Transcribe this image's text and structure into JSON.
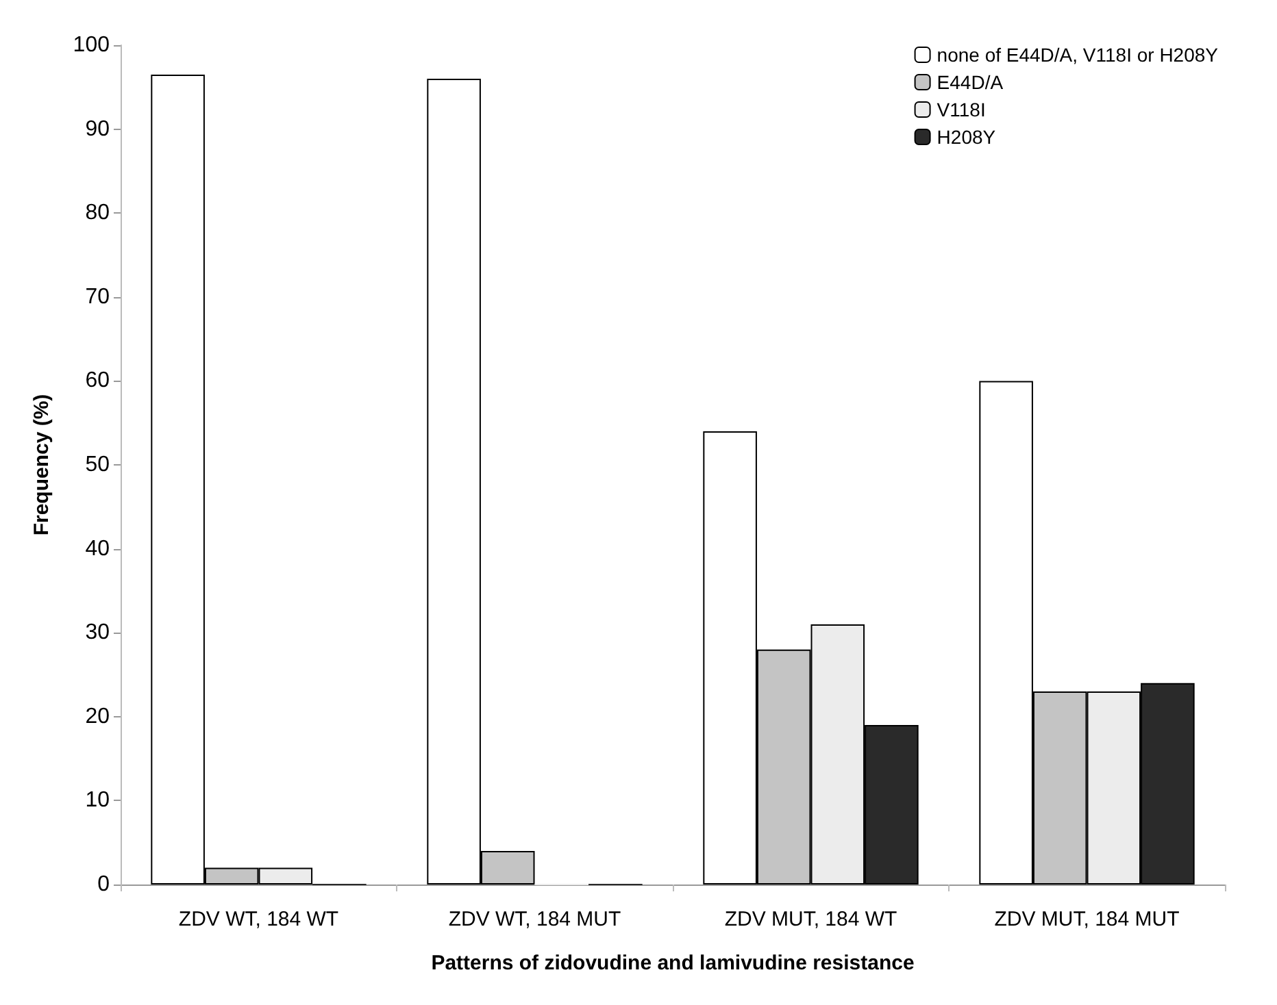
{
  "chart_data": {
    "type": "bar",
    "xlabel": "Patterns of zidovudine and lamivudine resistance",
    "ylabel": "Frequency (%)",
    "categories": [
      "ZDV WT, 184 WT",
      "ZDV WT, 184 MUT",
      "ZDV MUT, 184 WT",
      "ZDV MUT, 184 MUT"
    ],
    "series": [
      {
        "name": "none of E44D/A, V118I or H208Y",
        "color": "#ffffff",
        "values": [
          96.5,
          96,
          54,
          60
        ]
      },
      {
        "name": "E44D/A",
        "color": "#c4c4c4",
        "values": [
          2,
          4,
          28,
          23
        ]
      },
      {
        "name": "V118I",
        "color": "#ececec",
        "values": [
          2,
          0,
          31,
          23
        ]
      },
      {
        "name": "H208Y",
        "color": "#2a2a2a",
        "values": [
          0,
          0,
          19,
          24
        ]
      }
    ],
    "ylim": [
      0,
      100
    ],
    "yticks": [
      0,
      10,
      20,
      30,
      40,
      50,
      60,
      70,
      80,
      90,
      100
    ],
    "grid": false,
    "legend": "top right"
  }
}
